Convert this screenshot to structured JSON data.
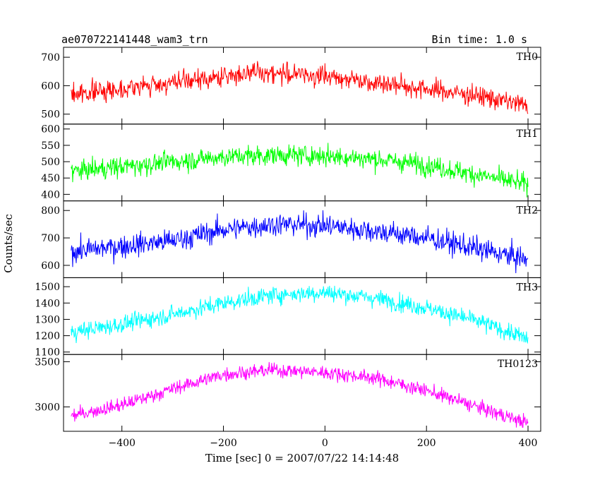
{
  "header": {
    "title": "ae070722141448_wam3_trn",
    "bin_time": "Bin time: 1.0 s"
  },
  "chart_data": {
    "type": "line",
    "xlabel": "Time [sec] 0 = 2007/07/22 14:14:48",
    "ylabel": "Counts/sec",
    "xlim": [
      -515,
      425
    ],
    "x_ticks": [
      -400,
      -200,
      0,
      200,
      400
    ],
    "x_sample_range": [
      -500,
      400
    ],
    "bin_time_s": 1.0,
    "panels": [
      {
        "name": "TH0",
        "color": "#ff0000",
        "ylim": [
          465,
          735
        ],
        "y_ticks": [
          500,
          600,
          700
        ],
        "trend_x": [
          -500,
          -350,
          -200,
          -150,
          -50,
          50,
          150,
          300,
          400
        ],
        "trend_y": [
          570,
          600,
          630,
          648,
          640,
          625,
          600,
          565,
          530
        ],
        "noise": 32
      },
      {
        "name": "TH1",
        "color": "#00ff00",
        "ylim": [
          380,
          615
        ],
        "y_ticks": [
          400,
          450,
          500,
          550,
          600
        ],
        "trend_x": [
          -500,
          -300,
          -200,
          -100,
          0,
          100,
          200,
          300,
          400
        ],
        "trend_y": [
          470,
          500,
          515,
          520,
          518,
          508,
          490,
          460,
          430
        ],
        "noise": 28
      },
      {
        "name": "TH2",
        "color": "#0000ff",
        "ylim": [
          555,
          835
        ],
        "y_ticks": [
          600,
          700,
          800
        ],
        "trend_x": [
          -500,
          -300,
          -200,
          -100,
          0,
          100,
          200,
          300,
          400
        ],
        "trend_y": [
          650,
          690,
          730,
          750,
          745,
          725,
          700,
          660,
          620
        ],
        "noise": 38
      },
      {
        "name": "TH3",
        "color": "#00ffff",
        "ylim": [
          1085,
          1555
        ],
        "y_ticks": [
          1100,
          1200,
          1300,
          1400,
          1500
        ],
        "trend_x": [
          -500,
          -400,
          -300,
          -200,
          -100,
          0,
          100,
          200,
          300,
          400
        ],
        "trend_y": [
          1220,
          1270,
          1330,
          1400,
          1450,
          1465,
          1430,
          1370,
          1290,
          1180
        ],
        "noise": 48
      },
      {
        "name": "TH0123",
        "color": "#ff00ff",
        "ylim": [
          2730,
          3580
        ],
        "y_ticks": [
          3000,
          3500
        ],
        "trend_x": [
          -500,
          -400,
          -300,
          -200,
          -100,
          0,
          100,
          200,
          300,
          400
        ],
        "trend_y": [
          2900,
          3020,
          3200,
          3360,
          3410,
          3380,
          3320,
          3180,
          3000,
          2820
        ],
        "noise": 70
      }
    ]
  }
}
